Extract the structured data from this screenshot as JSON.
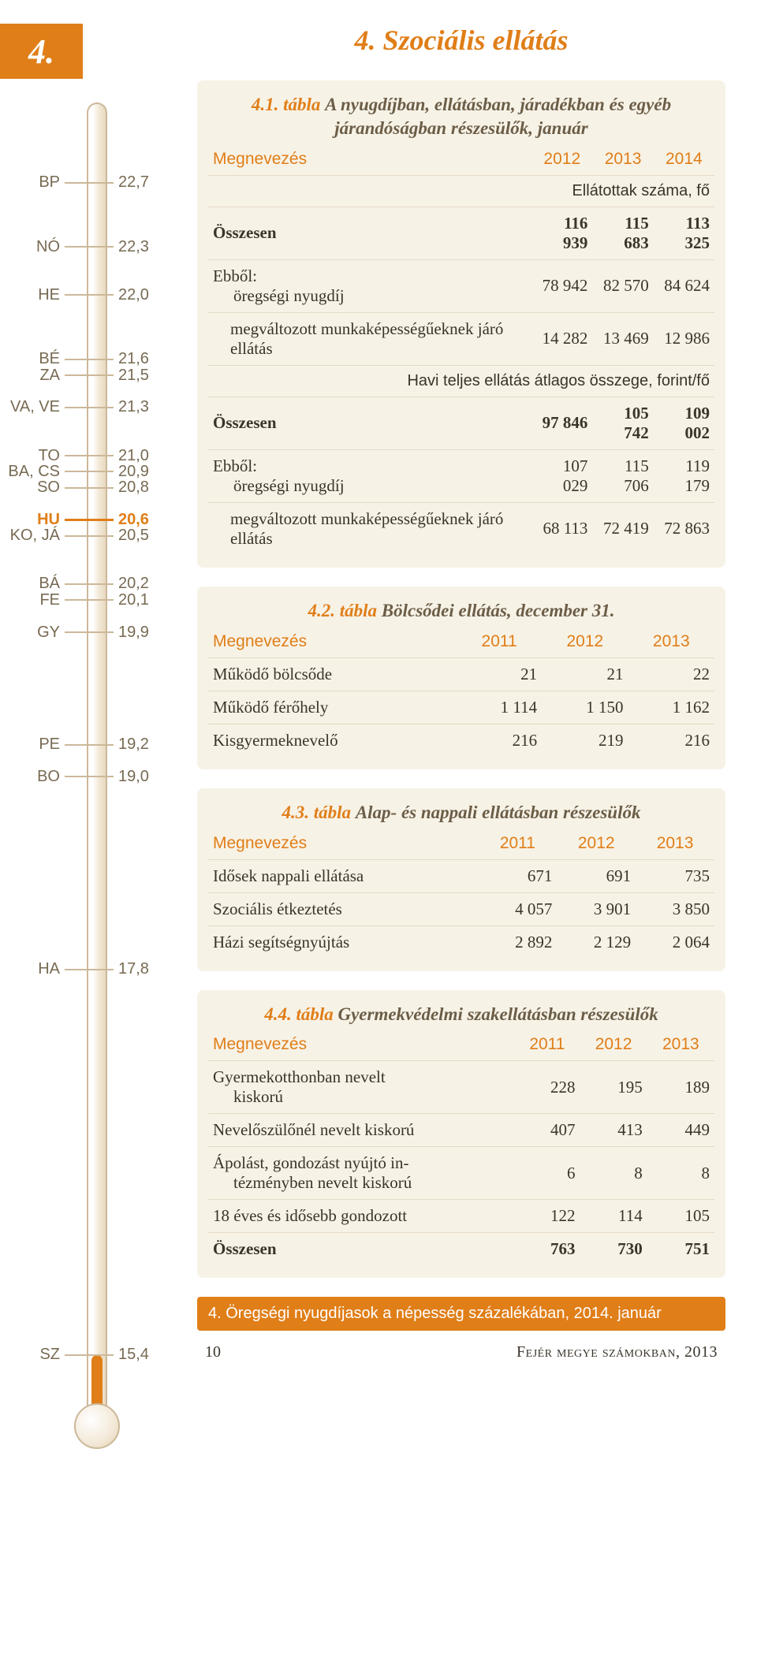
{
  "section_badge": "4.",
  "page_title": "4. Szociális ellátás",
  "thermometer": {
    "tube_color": "#ccb89a",
    "fill_color": "#e07e18",
    "bg_gradient_from": "#ffffff",
    "bg_gradient_to": "#e8d9bf",
    "scale_min": 15.0,
    "scale_max": 23.2,
    "fill_to_value": 15.4,
    "ticks": [
      {
        "code": "BP",
        "value": "22,7",
        "num": 22.7,
        "highlight": false
      },
      {
        "code": "NÓ",
        "value": "22,3",
        "num": 22.3,
        "highlight": false
      },
      {
        "code": "HE",
        "value": "22,0",
        "num": 22.0,
        "highlight": false
      },
      {
        "code": "BÉ",
        "value": "21,6",
        "num": 21.6,
        "highlight": false
      },
      {
        "code": "ZA",
        "value": "21,5",
        "num": 21.5,
        "highlight": false
      },
      {
        "code": "VA, VE",
        "value": "21,3",
        "num": 21.3,
        "highlight": false
      },
      {
        "code": "TO",
        "value": "21,0",
        "num": 21.0,
        "highlight": false
      },
      {
        "code": "BA, CS",
        "value": "20,9",
        "num": 20.9,
        "highlight": false
      },
      {
        "code": "SO",
        "value": "20,8",
        "num": 20.8,
        "highlight": false
      },
      {
        "code": "HU",
        "value": "20,6",
        "num": 20.6,
        "highlight": true
      },
      {
        "code": "KO, JÁ",
        "value": "20,5",
        "num": 20.5,
        "highlight": false
      },
      {
        "code": "BÁ",
        "value": "20,2",
        "num": 20.2,
        "highlight": false
      },
      {
        "code": "FE",
        "value": "20,1",
        "num": 20.1,
        "highlight": false
      },
      {
        "code": "GY",
        "value": "19,9",
        "num": 19.9,
        "highlight": false
      },
      {
        "code": "PE",
        "value": "19,2",
        "num": 19.2,
        "highlight": false
      },
      {
        "code": "BO",
        "value": "19,0",
        "num": 19.0,
        "highlight": false
      },
      {
        "code": "HA",
        "value": "17,8",
        "num": 17.8,
        "highlight": false
      },
      {
        "code": "SZ",
        "value": "15,4",
        "num": 15.4,
        "highlight": false
      }
    ]
  },
  "tables": {
    "t41": {
      "title_num": "4.1. tábla",
      "title_text": "A nyugdíjban, ellátásban, járadékban és egyéb járandóságban részesülők, január",
      "col_header": "Megnevezés",
      "years": [
        "2012",
        "2013",
        "2014"
      ],
      "sub1": "Ellátottak száma, fő",
      "rows1": [
        {
          "label": "Összesen",
          "vals": [
            "116 939",
            "115 683",
            "113 325"
          ],
          "bold": true,
          "indent": false
        },
        {
          "label": "Ebből:\n  öregségi nyugdíj",
          "vals": [
            "78 942",
            "82 570",
            "84 624"
          ],
          "bold": false,
          "indent": false,
          "twoLine": true,
          "line1": "Ebből:",
          "line2": "öregségi nyugdíj"
        },
        {
          "label": "megváltozott munkaképességűeknek járó ellátás",
          "vals": [
            "14 282",
            "13 469",
            "12 986"
          ],
          "bold": false,
          "indent": true
        }
      ],
      "sub2": "Havi teljes ellátás átlagos összege, forint/fő",
      "rows2": [
        {
          "label": "Összesen",
          "vals": [
            "97 846",
            "105 742",
            "109 002"
          ],
          "bold": true,
          "indent": false
        },
        {
          "label": "Ebből:\n  öregségi nyugdíj",
          "vals": [
            "107 029",
            "115 706",
            "119 179"
          ],
          "bold": false,
          "indent": false,
          "twoLine": true,
          "line1": "Ebből:",
          "line2": "öregségi nyugdíj"
        },
        {
          "label": "megváltozott munkaképességűeknek járó ellátás",
          "vals": [
            "68 113",
            "72 419",
            "72 863"
          ],
          "bold": false,
          "indent": true
        }
      ]
    },
    "t42": {
      "title_num": "4.2. tábla",
      "title_text": "Bölcsődei ellátás, december 31.",
      "col_header": "Megnevezés",
      "years": [
        "2011",
        "2012",
        "2013"
      ],
      "rows": [
        {
          "label": "Működő bölcsőde",
          "vals": [
            "21",
            "21",
            "22"
          ]
        },
        {
          "label": "Működő férőhely",
          "vals": [
            "1 114",
            "1 150",
            "1 162"
          ]
        },
        {
          "label": "Kisgyermeknevelő",
          "vals": [
            "216",
            "219",
            "216"
          ]
        }
      ]
    },
    "t43": {
      "title_num": "4.3. tábla",
      "title_text": "Alap- és nappali ellátásban részesülők",
      "col_header": "Megnevezés",
      "years": [
        "2011",
        "2012",
        "2013"
      ],
      "rows": [
        {
          "label": "Idősek nappali ellátása",
          "vals": [
            "671",
            "691",
            "735"
          ]
        },
        {
          "label": "Szociális étkeztetés",
          "vals": [
            "4 057",
            "3 901",
            "3 850"
          ]
        },
        {
          "label": "Házi segítségnyújtás",
          "vals": [
            "2 892",
            "2 129",
            "2 064"
          ]
        }
      ]
    },
    "t44": {
      "title_num": "4.4. tábla",
      "title_text": "Gyermekvédelmi szakellátásban részesülők",
      "col_header": "Megnevezés",
      "years": [
        "2011",
        "2012",
        "2013"
      ],
      "rows": [
        {
          "label": "Gyermekotthonban nevelt kiskorú",
          "vals": [
            "228",
            "195",
            "189"
          ],
          "twoLine": true,
          "line1": "Gyermekotthonban nevelt",
          "line2": "kiskorú"
        },
        {
          "label": "Nevelőszülőnél nevelt kiskorú",
          "vals": [
            "407",
            "413",
            "449"
          ]
        },
        {
          "label": "Ápolást, gondozást nyújtó intézményben nevelt kiskorú",
          "vals": [
            "6",
            "8",
            "8"
          ],
          "twoLine": true,
          "line1": "Ápolást, gondozást nyújtó in-",
          "line2": "tézményben nevelt kiskorú"
        },
        {
          "label": "18 éves és idősebb gondozott",
          "vals": [
            "122",
            "114",
            "105"
          ]
        },
        {
          "label": "Összesen",
          "vals": [
            "763",
            "730",
            "751"
          ],
          "bold": true
        }
      ]
    }
  },
  "caption_bar": "4. Öregségi nyugdíjasok a népesség százalékában, 2014. január",
  "footer": {
    "page_num": "10",
    "book_title": "Fejér megye számokban, 2013"
  },
  "colors": {
    "accent": "#e07e18",
    "card_bg": "#f7f2e6",
    "text_muted": "#776a52",
    "text_body": "#3a342a",
    "divider": "#e4dac6"
  }
}
